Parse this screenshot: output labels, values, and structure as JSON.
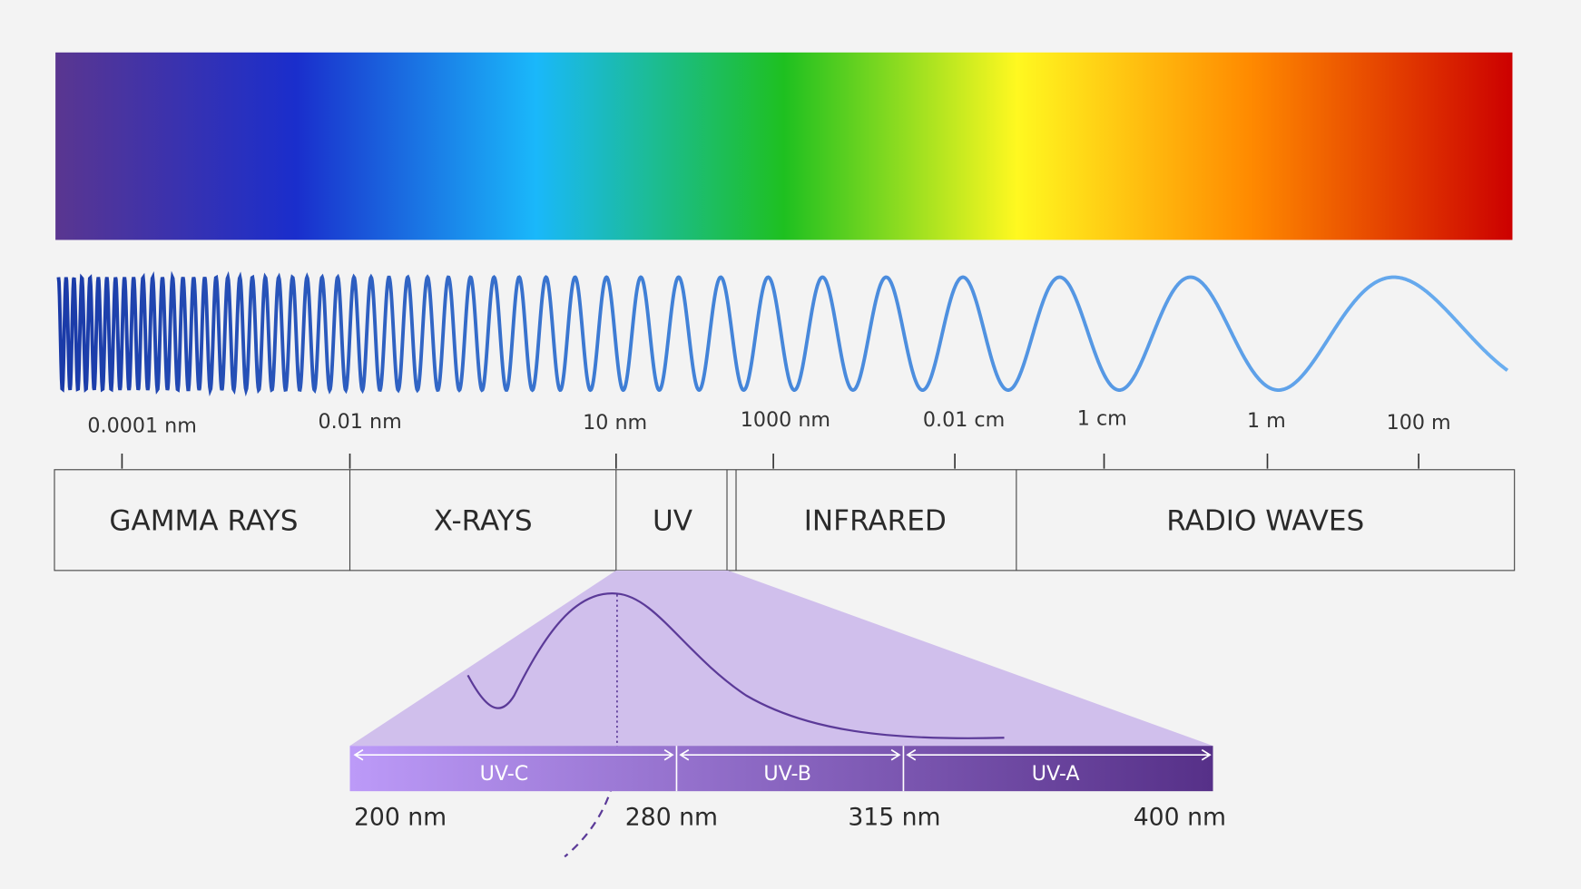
{
  "scale_labels": [
    "0.0001 nm",
    "0.01 nm",
    "10 nm",
    "1000 nm",
    "0.01 cm",
    "1 cm",
    "1 m",
    "100 m"
  ],
  "bands": [
    "GAMMA RAYS",
    "X-RAYS",
    "UV",
    "INFRARED",
    "RADIO WAVES"
  ],
  "uv_bands": [
    "UV-C",
    "UV-B",
    "UV-A"
  ],
  "uv_limits": [
    "200 nm",
    "280 nm",
    "315 nm",
    "400 nm"
  ]
}
